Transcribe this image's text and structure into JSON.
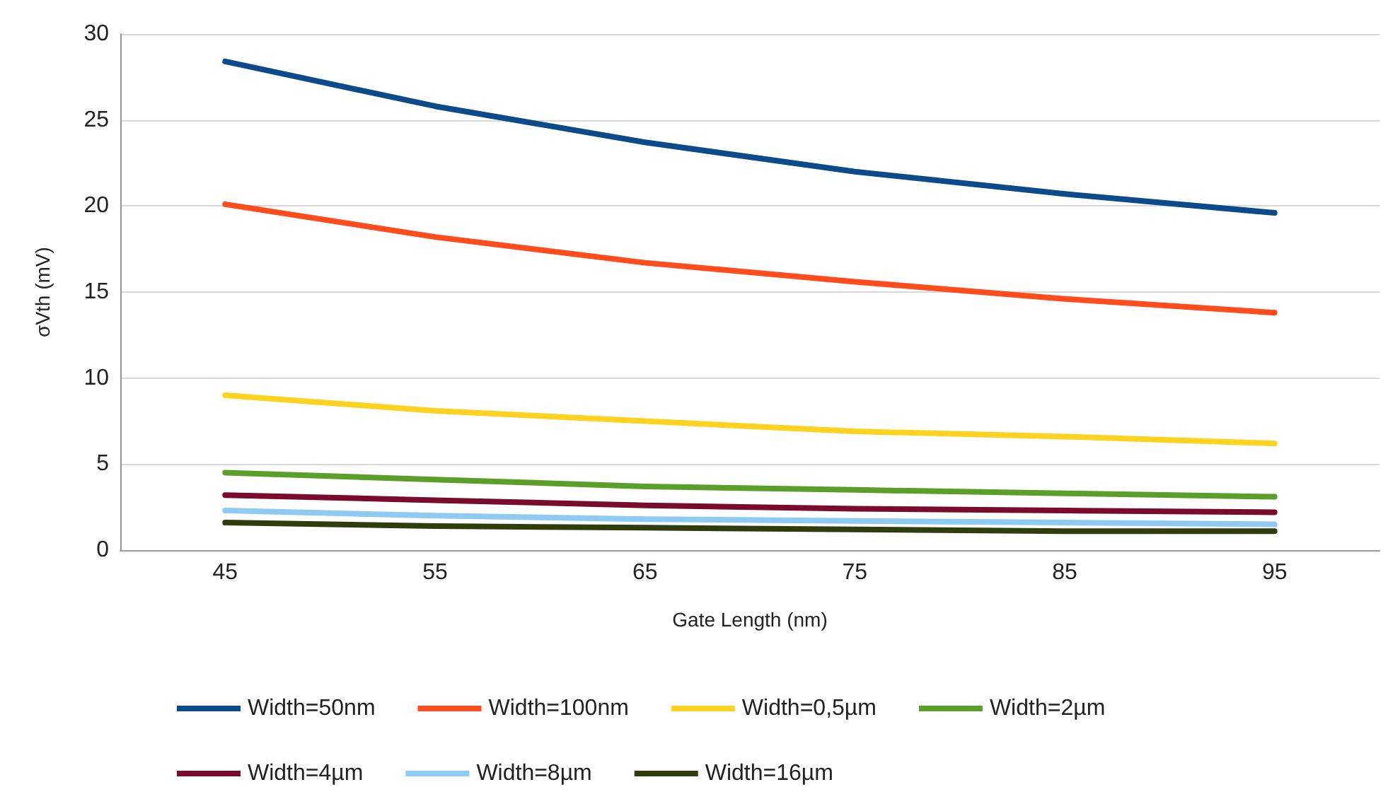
{
  "chart_data": {
    "type": "line",
    "xlabel": "Gate Length (nm)",
    "ylabel": "σVth (mV)",
    "categories": [
      "45",
      "55",
      "65",
      "75",
      "85",
      "95"
    ],
    "ylim": [
      0,
      30
    ],
    "yticks": [
      0,
      5,
      10,
      15,
      20,
      25,
      30
    ],
    "grid": "y",
    "legend": "bottom",
    "marker": "none",
    "line_style": "solid",
    "series": [
      {
        "name": "Width=50nm",
        "color": "#0b4a8b",
        "values": [
          28.4,
          25.8,
          23.7,
          22.0,
          20.7,
          19.6
        ]
      },
      {
        "name": "Width=100nm",
        "color": "#ff4c1c",
        "values": [
          20.1,
          18.2,
          16.7,
          15.6,
          14.6,
          13.8
        ]
      },
      {
        "name": "Width=0,5µm",
        "color": "#ffd21f",
        "values": [
          9.0,
          8.1,
          7.5,
          6.9,
          6.6,
          6.2
        ]
      },
      {
        "name": "Width=2µm",
        "color": "#5b9f2b",
        "values": [
          4.5,
          4.1,
          3.7,
          3.5,
          3.3,
          3.1
        ]
      },
      {
        "name": "Width=4µm",
        "color": "#7a0b2c",
        "values": [
          3.2,
          2.9,
          2.6,
          2.4,
          2.3,
          2.2
        ]
      },
      {
        "name": "Width=8µm",
        "color": "#8ecbf4",
        "values": [
          2.3,
          2.0,
          1.8,
          1.7,
          1.6,
          1.5
        ]
      },
      {
        "name": "Width=16µm",
        "color": "#2f3d0c",
        "values": [
          1.6,
          1.4,
          1.3,
          1.2,
          1.1,
          1.1
        ]
      }
    ]
  }
}
